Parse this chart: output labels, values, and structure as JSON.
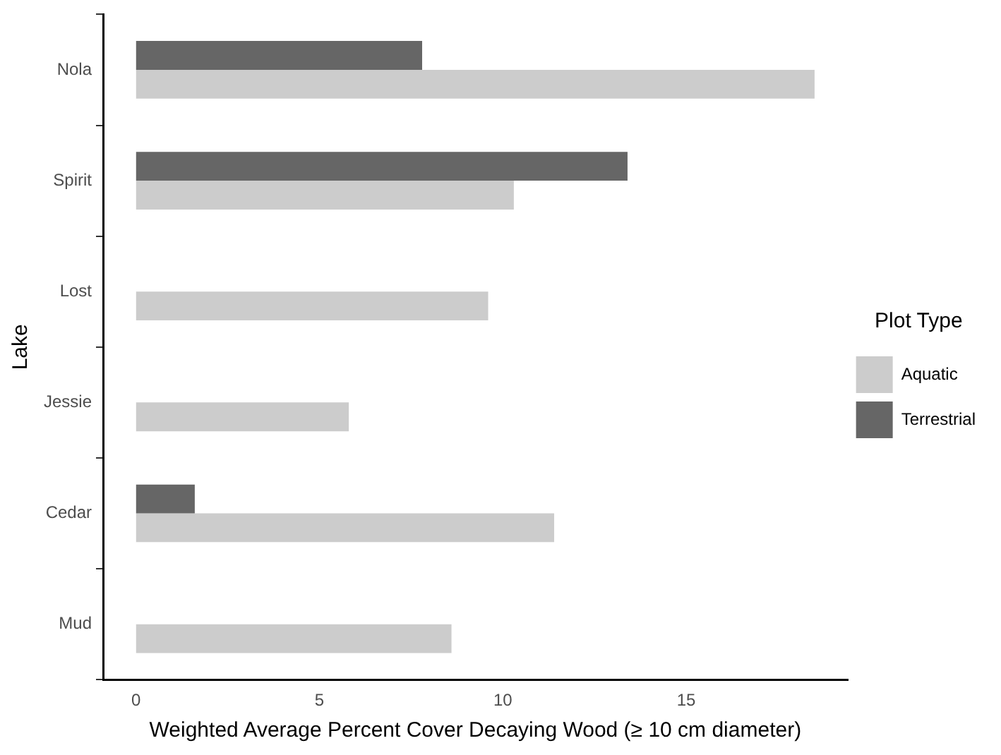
{
  "chart_data": {
    "type": "bar",
    "orientation": "horizontal",
    "xlabel": "Weighted Average Percent Cover Decaying Wood (≥ 10 cm diameter)",
    "ylabel": "Lake",
    "legend_title": "Plot Type",
    "legend": "right",
    "grid": false,
    "categories": [
      "Nola",
      "Spirit",
      "Lost",
      "Jessie",
      "Cedar",
      "Mud"
    ],
    "series": [
      {
        "name": "Aquatic",
        "color": "#cccccc",
        "values": [
          18.5,
          10.3,
          9.6,
          5.8,
          11.4,
          8.6
        ]
      },
      {
        "name": "Terrestrial",
        "color": "#666666",
        "values": [
          7.8,
          13.4,
          null,
          null,
          1.6,
          null
        ]
      }
    ],
    "xlim": [
      -0.9,
      19.4
    ],
    "xticks": [
      0,
      5,
      10,
      15
    ]
  }
}
